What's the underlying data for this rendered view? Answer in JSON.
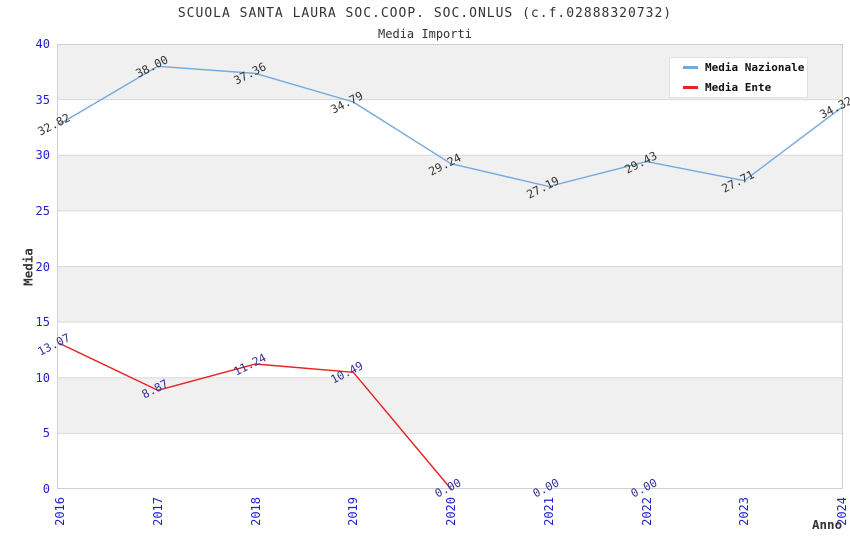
{
  "header": {
    "title": "SCUOLA SANTA LAURA SOC.COOP. SOC.ONLUS (c.f.02888320732)",
    "subtitle": "Media Importi"
  },
  "colors": {
    "tick_label": "#2222CC",
    "band_gray": "#F0F0F0",
    "band_white": "#FFFFFF",
    "gridline": "#D9D9D9",
    "plot_border": "#D0D0D0",
    "title_text": "#333333"
  },
  "chart_data": {
    "type": "line",
    "title": "SCUOLA SANTA LAURA SOC.COOP. SOC.ONLUS (c.f.02888320732)",
    "subtitle": "Media Importi",
    "xlabel": "Anno",
    "ylabel": "Media",
    "categories": [
      "2016",
      "2017",
      "2018",
      "2019",
      "2020",
      "2021",
      "2022",
      "2023",
      "2024"
    ],
    "ylim": [
      0,
      40
    ],
    "ytick_step": 5,
    "yticks": [
      0,
      5,
      10,
      15,
      20,
      25,
      30,
      35,
      40
    ],
    "grid": "horizontal",
    "legend_position": "top-right",
    "series": [
      {
        "name": "Media Nazionale",
        "color": "#74A9DF",
        "label_color": "#333333",
        "values": [
          32.82,
          38.0,
          37.36,
          34.79,
          29.24,
          27.19,
          29.43,
          27.71,
          34.32
        ]
      },
      {
        "name": "Media Ente",
        "color": "#E62222",
        "label_color": "#333399",
        "values": [
          13.07,
          8.87,
          11.24,
          10.49,
          0.0,
          0.0,
          0.0,
          null,
          null
        ],
        "line_end_index": 4
      }
    ]
  }
}
